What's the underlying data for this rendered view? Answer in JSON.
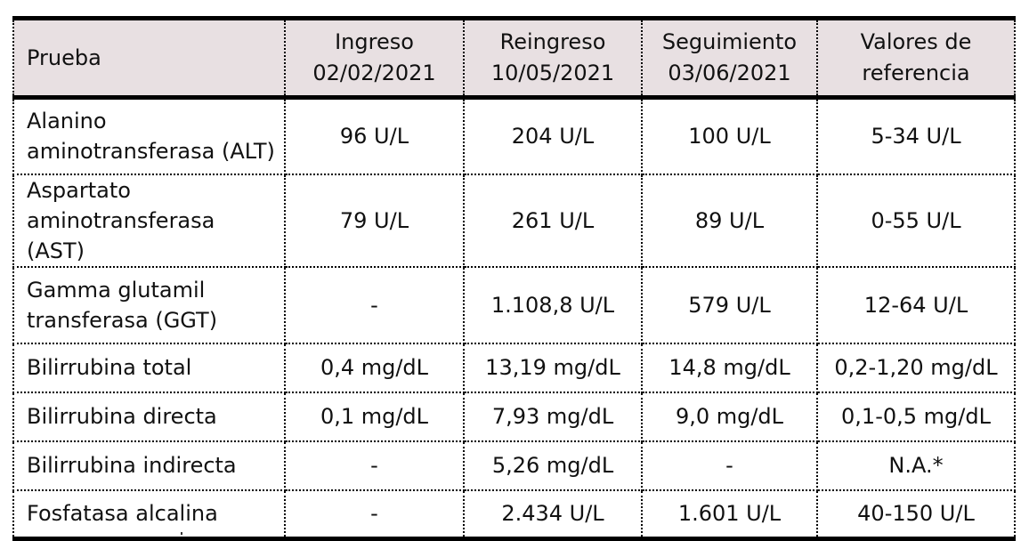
{
  "table": {
    "header_bg": "#E8E0E2",
    "columns": [
      {
        "line1": "Prueba",
        "line2": ""
      },
      {
        "line1": "Ingreso",
        "line2": "02/02/2021"
      },
      {
        "line1": "Reingreso",
        "line2": "10/05/2021"
      },
      {
        "line1": "Seguimiento",
        "line2": "03/06/2021"
      },
      {
        "line1": "Valores de",
        "line2": "referencia"
      }
    ],
    "rows": [
      {
        "name_line1": "Alanino",
        "name_line2": "aminotransferasa (ALT)",
        "ingreso": "96 U/L",
        "reingreso": "204 U/L",
        "seguimiento": "100 U/L",
        "referencia": "5-34 U/L"
      },
      {
        "name_line1": "Aspartato",
        "name_line2": "aminotransferasa (AST)",
        "ingreso": "79 U/L",
        "reingreso": "261 U/L",
        "seguimiento": "89 U/L",
        "referencia": "0-55 U/L"
      },
      {
        "name_line1": "Gamma glutamil",
        "name_line2": "transferasa (GGT)",
        "ingreso": "-",
        "reingreso": "1.108,8 U/L",
        "seguimiento": "579 U/L",
        "referencia": "12-64 U/L"
      },
      {
        "name_line1": "Bilirrubina total",
        "name_line2": "",
        "ingreso": "0,4 mg/dL",
        "reingreso": "13,19 mg/dL",
        "seguimiento": "14,8 mg/dL",
        "referencia": "0,2-1,20 mg/dL"
      },
      {
        "name_line1": "Bilirrubina directa",
        "name_line2": "",
        "ingreso": "0,1 mg/dL",
        "reingreso": "7,93 mg/dL",
        "seguimiento": "9,0 mg/dL",
        "referencia": "0,1-0,5 mg/dL"
      },
      {
        "name_line1": "Bilirrubina indirecta",
        "name_line2": "",
        "ingreso": "-",
        "reingreso": "5,26 mg/dL",
        "seguimiento": "-",
        "referencia": "N.A.*"
      },
      {
        "name_line1": "Fosfatasa alcalina",
        "name_line2": "",
        "ingreso": "-",
        "reingreso": "2.434 U/L",
        "seguimiento": "1.601 U/L",
        "referencia": "40-150 U/L"
      }
    ]
  }
}
